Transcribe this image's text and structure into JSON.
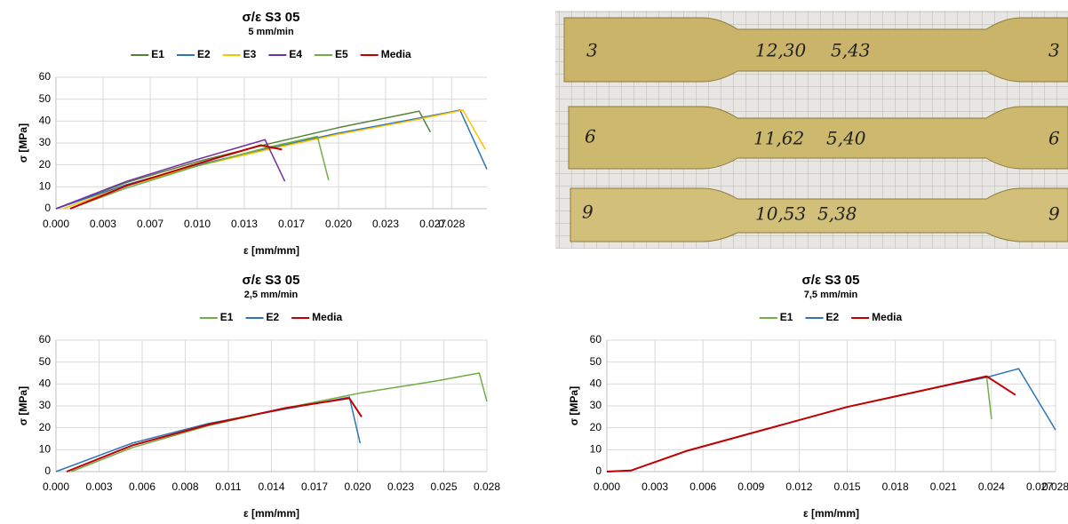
{
  "chart_data": [
    {
      "type": "line",
      "title": "σ/ε S3 05",
      "subtitle": "5 mm/min",
      "x_label": "ε [mm/mm]",
      "y_label": "σ [MPa]",
      "xlim": [
        0,
        0.0305
      ],
      "ylim": [
        0,
        60
      ],
      "grid": true,
      "legend": "top",
      "xticks": [
        {
          "value": 0,
          "label": "0.000"
        },
        {
          "value": 0.00333,
          "label": "0.003"
        },
        {
          "value": 0.00667,
          "label": "0.007"
        },
        {
          "value": 0.01,
          "label": "0.010"
        },
        {
          "value": 0.01333,
          "label": "0.013"
        },
        {
          "value": 0.01667,
          "label": "0.017"
        },
        {
          "value": 0.02,
          "label": "0.020"
        },
        {
          "value": 0.02333,
          "label": "0.023"
        },
        {
          "value": 0.02667,
          "label": "0.027"
        },
        0.028
      ],
      "yticks": [
        0,
        10,
        20,
        30,
        40,
        50,
        60
      ],
      "series": [
        {
          "name": "E1",
          "color": "#548235",
          "x": [
            0,
            0.005,
            0.01,
            0.015,
            0.02,
            0.0257,
            0.0265
          ],
          "values": [
            0,
            12,
            21.5,
            29.5,
            37,
            44.5,
            35
          ]
        },
        {
          "name": "E2",
          "color": "#2e75b6",
          "x": [
            0,
            0.005,
            0.01,
            0.015,
            0.02,
            0.025,
            0.0286,
            0.0305
          ],
          "values": [
            0,
            11,
            20,
            27.5,
            34.5,
            40.5,
            45,
            18
          ]
        },
        {
          "name": "E3",
          "color": "#ffc000",
          "x": [
            0.0005,
            0.005,
            0.01,
            0.015,
            0.02,
            0.025,
            0.0288,
            0.0304
          ],
          "values": [
            0,
            10.5,
            19.5,
            27,
            34,
            40,
            45,
            27
          ]
        },
        {
          "name": "E4",
          "color": "#7030a0",
          "x": [
            0,
            0.005,
            0.01,
            0.0148,
            0.0162
          ],
          "values": [
            0,
            12.5,
            22.5,
            31.5,
            12.5
          ]
        },
        {
          "name": "E5",
          "color": "#70ad47",
          "x": [
            0.001,
            0.005,
            0.01,
            0.015,
            0.0185,
            0.0193
          ],
          "values": [
            0,
            9.5,
            19.5,
            28,
            33,
            13
          ]
        },
        {
          "name": "Media",
          "color": "#c00000",
          "x": [
            0.001,
            0.005,
            0.01,
            0.0145,
            0.016
          ],
          "values": [
            0,
            10.5,
            20.5,
            29,
            27
          ]
        }
      ]
    },
    {
      "type": "line",
      "title": "σ/ε S3 05",
      "subtitle": "2,5 mm/min",
      "x_label": "ε [mm/mm]",
      "y_label": "σ [MPa]",
      "xlim": [
        0,
        0.0282
      ],
      "ylim": [
        0,
        60
      ],
      "grid": true,
      "legend": "top",
      "xticks": [
        {
          "value": 0,
          "label": "0.000"
        },
        {
          "value": 0.00282,
          "label": "0.003"
        },
        {
          "value": 0.00564,
          "label": "0.006"
        },
        {
          "value": 0.00846,
          "label": "0.008"
        },
        {
          "value": 0.01128,
          "label": "0.011"
        },
        {
          "value": 0.0141,
          "label": "0.014"
        },
        {
          "value": 0.01692,
          "label": "0.017"
        },
        {
          "value": 0.01974,
          "label": "0.020"
        },
        {
          "value": 0.02256,
          "label": "0.023"
        },
        {
          "value": 0.02538,
          "label": "0.025"
        },
        {
          "value": 0.0282,
          "label": "0.028"
        }
      ],
      "yticks": [
        0,
        10,
        20,
        30,
        40,
        50,
        60
      ],
      "series": [
        {
          "name": "E1",
          "color": "#70ad47",
          "x": [
            0.001,
            0.005,
            0.01,
            0.015,
            0.02,
            0.025,
            0.0277,
            0.0282
          ],
          "values": [
            0,
            11,
            21,
            29,
            36,
            41.5,
            45,
            32
          ]
        },
        {
          "name": "E2",
          "color": "#2e75b6",
          "x": [
            0,
            0.005,
            0.01,
            0.015,
            0.0192,
            0.0199
          ],
          "values": [
            0,
            13,
            22,
            28.5,
            34,
            13
          ]
        },
        {
          "name": "Media",
          "color": "#c00000",
          "x": [
            0.0007,
            0.005,
            0.01,
            0.015,
            0.0192,
            0.02
          ],
          "values": [
            0,
            12,
            21.5,
            29,
            33.5,
            25
          ]
        }
      ]
    },
    {
      "type": "line",
      "title": "σ/ε S3 05",
      "subtitle": "7,5 mm/min",
      "x_label": "ε [mm/mm]",
      "y_label": "σ [MPa]",
      "xlim": [
        0,
        0.028
      ],
      "ylim": [
        0,
        60
      ],
      "grid": true,
      "legend": "top",
      "xticks": [
        {
          "value": 0,
          "label": "0.000"
        },
        0.003,
        0.006,
        0.009,
        0.012,
        0.015,
        0.018,
        0.021,
        0.024,
        0.027,
        0.028
      ],
      "yticks": [
        0,
        10,
        20,
        30,
        40,
        50,
        60
      ],
      "series": [
        {
          "name": "E1",
          "color": "#70ad47",
          "x": [
            0,
            0.0015,
            0.005,
            0.01,
            0.015,
            0.02,
            0.0237,
            0.024
          ],
          "values": [
            0,
            0.5,
            9.5,
            19.5,
            29.5,
            37.5,
            43.5,
            24
          ]
        },
        {
          "name": "E2",
          "color": "#2e75b6",
          "x": [
            0,
            0.0015,
            0.005,
            0.01,
            0.015,
            0.02,
            0.0237,
            0.0257,
            0.028
          ],
          "values": [
            0,
            0.5,
            9.5,
            19.5,
            29.5,
            37.5,
            43,
            47,
            19
          ]
        },
        {
          "name": "Media",
          "color": "#c00000",
          "x": [
            0,
            0.0015,
            0.005,
            0.01,
            0.015,
            0.02,
            0.0237,
            0.0255
          ],
          "values": [
            0,
            0.5,
            9.5,
            19.5,
            29.5,
            37.5,
            43.5,
            35
          ]
        }
      ]
    }
  ],
  "photo": {
    "labels": [
      "3",
      "12,30",
      "5,43",
      "3",
      "6",
      "11,62",
      "5,40",
      "6",
      "9",
      "10,53",
      "5,38",
      "9"
    ]
  }
}
